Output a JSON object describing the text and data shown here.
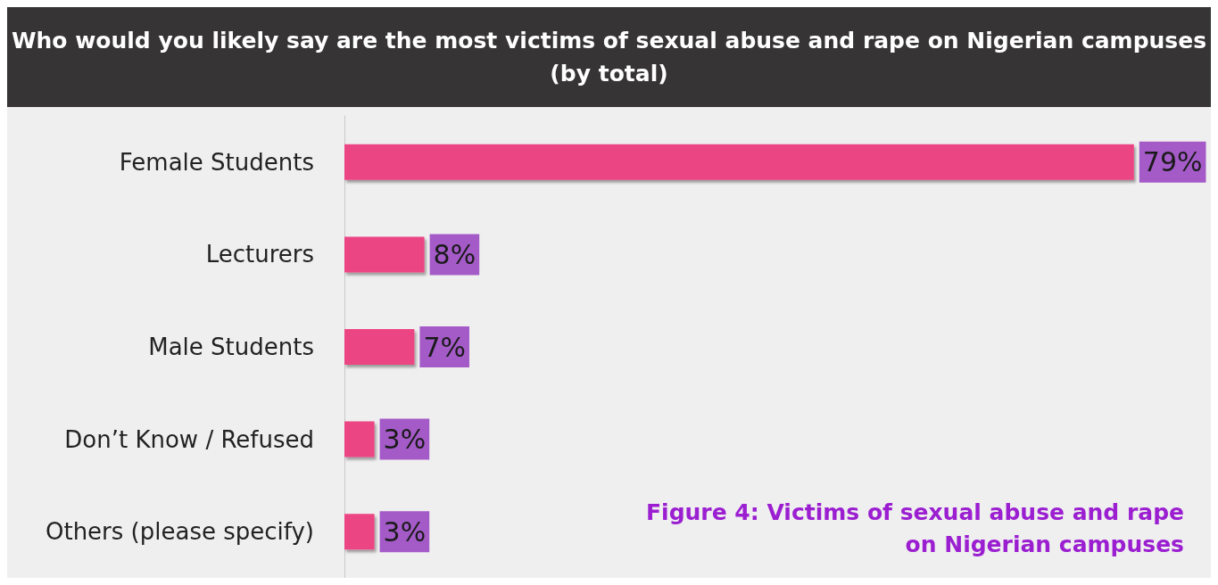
{
  "chart_data": {
    "type": "bar",
    "orientation": "horizontal",
    "title": "Who would you likely say are the most victims of sexual abuse and rape on Nigerian campuses\n(by total)",
    "categories": [
      "Female Students",
      "Lecturers",
      "Male Students",
      "Don’t Know / Refused",
      "Others (please specify)"
    ],
    "series": [
      {
        "color": "#ec4483",
        "values": [
          79,
          8,
          7,
          3,
          3
        ],
        "value_labels": [
          "79%",
          "8%",
          "7%",
          "3%",
          "3%"
        ]
      }
    ],
    "annotations": [
      "Figure 4: Victims of sexual abuse and rape\non Nigerian campuses"
    ],
    "grid": false
  }
}
